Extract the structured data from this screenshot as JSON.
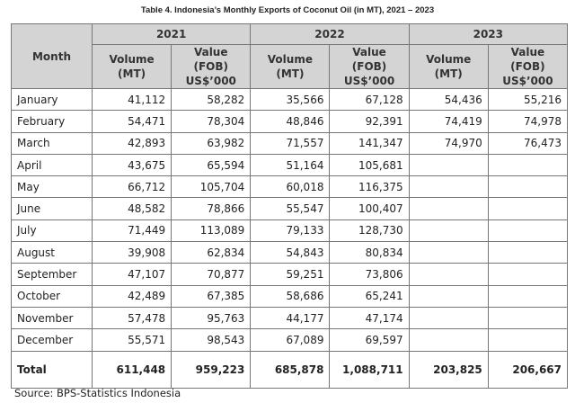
{
  "title": "Table 4. Indonesia’s Monthly Exports of Coconut Oil (in MT), 2021 – 2023",
  "table": {
    "month_header": "Month",
    "years": [
      "2021",
      "2022",
      "2023"
    ],
    "subheaders": [
      [
        "Volume",
        "(MT)"
      ],
      [
        "Value (FOB)",
        "US$’000"
      ],
      [
        "Volume",
        "(MT)"
      ],
      [
        "Value (FOB)",
        "US$’000"
      ],
      [
        "Volume",
        "(MT)"
      ],
      [
        "Value (FOB)",
        "US$’000"
      ]
    ],
    "rows": [
      [
        "January",
        "41,112",
        "58,282",
        "35,566",
        "67,128",
        "54,436",
        "55,216"
      ],
      [
        "February",
        "54,471",
        "78,304",
        "48,846",
        "92,391",
        "74,419",
        "74,978"
      ],
      [
        "March",
        "42,893",
        "63,982",
        "71,557",
        "141,347",
        "74,970",
        "76,473"
      ],
      [
        "April",
        "43,675",
        "65,594",
        "51,164",
        "105,681"
      ],
      [
        "May",
        "66,712",
        "105,704",
        "60,018",
        "116,375"
      ],
      [
        "June",
        "48,582",
        "78,866",
        "55,547",
        "100,407"
      ],
      [
        "July",
        "71,449",
        "113,089",
        "79,133",
        "128,730"
      ],
      [
        "August",
        "39,908",
        "62,834",
        "54,843",
        "80,834"
      ],
      [
        "September",
        "47,107",
        "70,877",
        "59,251",
        "73,806"
      ],
      [
        "October",
        "42,489",
        "67,385",
        "58,686",
        "65,241"
      ],
      [
        "November",
        "57,478",
        "95,763",
        "44,177",
        "47,174"
      ],
      [
        "December",
        "55,571",
        "98,543",
        "67,089",
        "69,597"
      ]
    ],
    "total": [
      "Total",
      "611,448",
      "959,223",
      "685,878",
      "1,088,711",
      "203,825",
      "206,667"
    ]
  },
  "source": "Source: BPS-Statistics Indonesia"
}
